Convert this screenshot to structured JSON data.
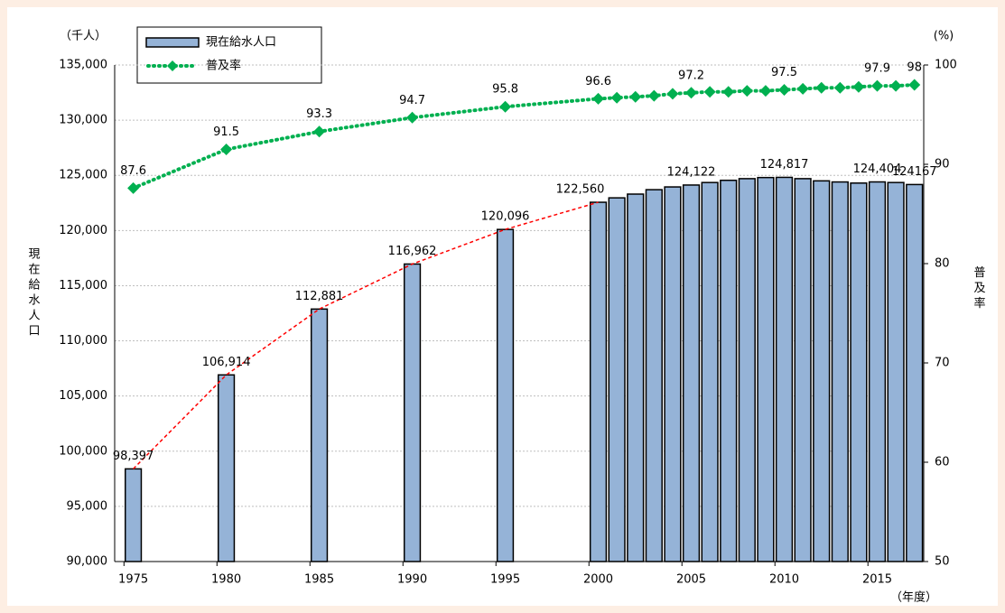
{
  "chart_data": {
    "type": "bar-line",
    "y_unit": "（千人）",
    "y2_unit": "(%)",
    "x_unit": "（年度）",
    "y_label": "現在給水人口",
    "y2_label": "普及率",
    "x": [
      1975,
      1980,
      1985,
      1990,
      1995,
      2000,
      2001,
      2002,
      2003,
      2004,
      2005,
      2006,
      2007,
      2008,
      2009,
      2010,
      2011,
      2012,
      2013,
      2014,
      2015,
      2016,
      2017
    ],
    "xlim": [
      1974,
      2017.5
    ],
    "xticks": [
      1975,
      1980,
      1985,
      1990,
      1995,
      2000,
      2005,
      2010,
      2015
    ],
    "ylim": [
      90000,
      135000
    ],
    "yticks": [
      {
        "value": 90000,
        "label": "90,000"
      },
      {
        "value": 95000,
        "label": "95,000"
      },
      {
        "value": 100000,
        "label": "100,000"
      },
      {
        "value": 105000,
        "label": "105,000"
      },
      {
        "value": 110000,
        "label": "110,000"
      },
      {
        "value": 115000,
        "label": "115,000"
      },
      {
        "value": 120000,
        "label": "120,000"
      },
      {
        "value": 125000,
        "label": "125,000"
      },
      {
        "value": 130000,
        "label": "130,000"
      },
      {
        "value": 135000,
        "label": "135,000"
      }
    ],
    "y2lim": [
      50,
      100
    ],
    "y2ticks": [
      50,
      60,
      70,
      80,
      90,
      100
    ],
    "grid": true,
    "series": [
      {
        "name": "現在給水人口",
        "kind": "bar",
        "color": "#95b3d7",
        "trend_color": "#ff0000",
        "values": [
          98397,
          106914,
          112881,
          116962,
          120096,
          122560,
          122960,
          123300,
          123700,
          123950,
          124122,
          124350,
          124550,
          124700,
          124800,
          124817,
          124700,
          124500,
          124400,
          124300,
          124404,
          124350,
          124167
        ],
        "value_labels": [
          "98,397",
          "106,914",
          "112,881",
          "116,962",
          "120,096",
          "122,560",
          null,
          null,
          null,
          null,
          "124,122",
          null,
          null,
          null,
          null,
          "124,817",
          null,
          null,
          null,
          null,
          "124,404",
          null,
          "124167"
        ]
      },
      {
        "name": "普及率",
        "kind": "line",
        "axis": "y2",
        "color": "#00b050",
        "values": [
          87.6,
          91.5,
          93.3,
          94.7,
          95.8,
          96.6,
          96.7,
          96.8,
          96.9,
          97.1,
          97.2,
          97.3,
          97.3,
          97.4,
          97.4,
          97.5,
          97.6,
          97.7,
          97.7,
          97.8,
          97.9,
          97.9,
          98
        ],
        "value_labels": [
          "87.6",
          "91.5",
          "93.3",
          "94.7",
          "95.8",
          "96.6",
          null,
          null,
          null,
          null,
          "97.2",
          null,
          null,
          null,
          null,
          "97.5",
          null,
          null,
          null,
          null,
          "97.9",
          null,
          "98"
        ]
      }
    ]
  }
}
